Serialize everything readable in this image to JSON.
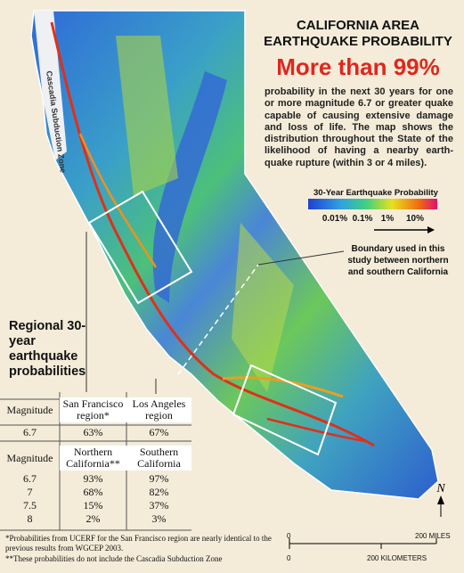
{
  "map": {
    "cascadia_label": "Cascadia Subduction Zone",
    "north": "N"
  },
  "header": {
    "title_lines": [
      "CALIFORNIA AREA",
      "EARTHQUAKE PROBABILITY"
    ],
    "headline": "More than 99%",
    "description": "probability in the next 30 years for one or more magnitude 6.7 or greater quake capable of causing extensive damage and loss of life. The map shows the distribution throughout the State of the likelihood of having a nearby earth-quake rupture (within 3 or 4 miles)."
  },
  "legend": {
    "title": "30-Year Earthquake Probability",
    "labels": [
      "0.01%",
      "0.1%",
      "1%",
      "10%"
    ]
  },
  "boundary_note": "Boundary used in this study between northern and southern California",
  "table": {
    "title": "Regional 30-year earthquake probabilities",
    "regional": {
      "header": [
        "Magnitude",
        "San Francisco region*",
        "Los Angeles region"
      ],
      "rows": [
        [
          "6.7",
          "63%",
          "67%"
        ]
      ]
    },
    "statewide": {
      "header": [
        "Magnitude",
        "Northern California**",
        "Southern California"
      ],
      "rows": [
        [
          "6.7",
          "93%",
          "97%"
        ],
        [
          "7",
          "68%",
          "82%"
        ],
        [
          "7.5",
          "15%",
          "37%"
        ],
        [
          "8",
          "2%",
          "3%"
        ]
      ]
    }
  },
  "footnotes": [
    "*Probabilities from UCERF for the San Francisco region are nearly identical to the previous results from WGCEP 2003.",
    "**These probabilities do not include the Cascadia Subduction Zone"
  ],
  "scale": {
    "miles": [
      "0",
      "200 MILES"
    ],
    "kilometers": [
      "0",
      "200 KILOMETERS"
    ]
  }
}
